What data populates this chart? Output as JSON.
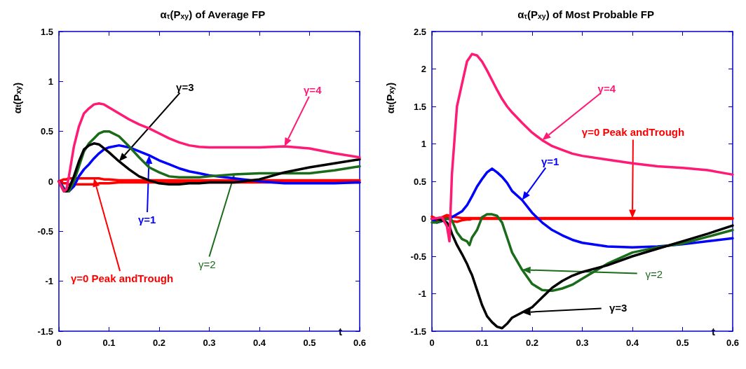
{
  "chart_data": [
    {
      "type": "line",
      "title": "α$_{τ}$(P$_{xy}$) of Average FP",
      "xlabel": "t",
      "ylabel": "α$_{t}$(P$_{xy}$)",
      "x": [
        0,
        0.005,
        0.01,
        0.015,
        0.02,
        0.03,
        0.04,
        0.05,
        0.06,
        0.07,
        0.08,
        0.09,
        0.1,
        0.12,
        0.14,
        0.16,
        0.18,
        0.2,
        0.22,
        0.24,
        0.26,
        0.28,
        0.3,
        0.35,
        0.4,
        0.45,
        0.5,
        0.55,
        0.6
      ],
      "xlim": [
        0,
        0.6
      ],
      "xticks": [
        0,
        0.1,
        0.2,
        0.3,
        0.4,
        0.5,
        0.6
      ],
      "ylim": [
        -1.5,
        1.5
      ],
      "yticks": [
        -1.5,
        -1,
        -0.5,
        0,
        0.5,
        1,
        1.5
      ],
      "series": [
        {
          "name": "γ=0 Peak andTrough",
          "color": "#ff0000",
          "values": [
            0,
            0.01,
            0.02,
            0.02,
            0.03,
            0.03,
            0.03,
            0.03,
            0.03,
            0.03,
            0.03,
            0.02,
            0.02,
            0.01,
            0.01,
            0.01,
            0.01,
            0.01,
            0.01,
            0.01,
            0.01,
            0.01,
            0.01,
            0.01,
            0.01,
            0.01,
            0.01,
            0.01,
            0.01
          ]
        },
        {
          "color": "#ff0000",
          "values": [
            0,
            -0.01,
            -0.02,
            -0.02,
            -0.03,
            -0.03,
            -0.03,
            -0.03,
            -0.03,
            -0.03,
            -0.02,
            -0.02,
            -0.02,
            -0.01,
            -0.01,
            -0.01,
            -0.01,
            -0.01,
            -0.01,
            -0.01,
            -0.01,
            -0.01,
            -0.01,
            -0.01,
            -0.01,
            -0.01,
            -0.01,
            -0.01,
            -0.01
          ]
        },
        {
          "name": "γ=1",
          "color": "#0000ff",
          "values": [
            0,
            -0.03,
            -0.07,
            -0.1,
            -0.1,
            -0.05,
            0.05,
            0.12,
            0.17,
            0.23,
            0.28,
            0.32,
            0.34,
            0.36,
            0.34,
            0.3,
            0.26,
            0.21,
            0.17,
            0.13,
            0.1,
            0.08,
            0.06,
            0.03,
            0,
            -0.02,
            -0.02,
            -0.02,
            -0.01
          ]
        },
        {
          "name": "γ=2",
          "color": "#1a6b1a",
          "values": [
            0,
            -0.04,
            -0.08,
            -0.1,
            -0.1,
            0,
            0.15,
            0.3,
            0.38,
            0.43,
            0.48,
            0.5,
            0.5,
            0.45,
            0.35,
            0.24,
            0.14,
            0.09,
            0.05,
            0.04,
            0.04,
            0.04,
            0.05,
            0.07,
            0.08,
            0.08,
            0.08,
            0.11,
            0.15
          ]
        },
        {
          "name": "γ=3",
          "color": "#000000",
          "values": [
            0,
            -0.05,
            -0.1,
            -0.1,
            -0.07,
            0.05,
            0.2,
            0.32,
            0.36,
            0.38,
            0.37,
            0.33,
            0.29,
            0.2,
            0.12,
            0.05,
            0.01,
            -0.02,
            -0.03,
            -0.03,
            -0.02,
            -0.02,
            -0.01,
            -0.01,
            0.02,
            0.09,
            0.14,
            0.18,
            0.22
          ]
        },
        {
          "name": "γ=4",
          "color": "#ff1a75",
          "values": [
            0,
            -0.05,
            -0.1,
            -0.08,
            0.05,
            0.35,
            0.55,
            0.68,
            0.73,
            0.77,
            0.78,
            0.77,
            0.74,
            0.68,
            0.62,
            0.57,
            0.53,
            0.48,
            0.43,
            0.39,
            0.36,
            0.345,
            0.34,
            0.34,
            0.34,
            0.35,
            0.33,
            0.28,
            0.24
          ]
        }
      ]
    },
    {
      "type": "line",
      "title": "α$_{τ}$(P$_{xy}$) of Most Probable FP",
      "xlabel": "t",
      "ylabel": "α$_{t}$(P$_{xy}$)",
      "x": [
        0,
        0.01,
        0.02,
        0.03,
        0.035,
        0.04,
        0.05,
        0.06,
        0.07,
        0.075,
        0.08,
        0.09,
        0.1,
        0.11,
        0.12,
        0.13,
        0.14,
        0.15,
        0.16,
        0.18,
        0.2,
        0.22,
        0.24,
        0.26,
        0.28,
        0.3,
        0.35,
        0.4,
        0.45,
        0.5,
        0.55,
        0.6
      ],
      "xlim": [
        0,
        0.6
      ],
      "xticks": [
        0,
        0.1,
        0.2,
        0.3,
        0.4,
        0.5,
        0.6
      ],
      "ylim": [
        -1.5,
        2.5
      ],
      "yticks": [
        -1.5,
        -1,
        -0.5,
        0,
        0.5,
        1,
        1.5,
        2,
        2.5
      ],
      "series": [
        {
          "name": "γ=0 Peak andTrough",
          "color": "#ff0000",
          "values": [
            0.03,
            0,
            0.02,
            0.05,
            0.04,
            0.03,
            0.02,
            0.01,
            0.01,
            0.01,
            0.01,
            0.01,
            0.01,
            0.01,
            0.01,
            0.01,
            0.01,
            0.01,
            0.01,
            0.01,
            0.01,
            0.01,
            0.01,
            0.01,
            0.01,
            0.01,
            0.01,
            0.01,
            0.01,
            0.01,
            0.01,
            0.01
          ]
        },
        {
          "color": "#ff0000",
          "values": [
            0,
            -0.02,
            0,
            0.02,
            0,
            -0.03,
            -0.04,
            -0.02,
            -0.01,
            -0.01,
            0,
            0,
            0,
            0,
            0,
            0,
            0,
            0,
            0,
            0,
            0,
            0,
            0,
            0,
            0,
            0,
            0,
            0,
            0,
            0,
            0,
            0
          ]
        },
        {
          "name": "γ=1",
          "color": "#0000ff",
          "values": [
            0,
            -0.05,
            -0.03,
            0,
            0,
            0.02,
            0.06,
            0.1,
            0.18,
            0.24,
            0.3,
            0.43,
            0.53,
            0.62,
            0.67,
            0.62,
            0.56,
            0.48,
            0.37,
            0.25,
            0.08,
            -0.05,
            -0.15,
            -0.22,
            -0.28,
            -0.32,
            -0.37,
            -0.38,
            -0.37,
            -0.34,
            -0.3,
            -0.26
          ]
        },
        {
          "name": "γ=2",
          "color": "#1a6b1a",
          "values": [
            -0.05,
            -0.05,
            -0.02,
            0,
            0,
            -0.02,
            -0.18,
            -0.27,
            -0.3,
            -0.35,
            -0.25,
            -0.15,
            0.02,
            0.06,
            0.06,
            0.04,
            -0.05,
            -0.25,
            -0.45,
            -0.68,
            -0.87,
            -0.95,
            -0.96,
            -0.93,
            -0.88,
            -0.8,
            -0.6,
            -0.45,
            -0.38,
            -0.33,
            -0.24,
            -0.15
          ]
        },
        {
          "name": "γ=3",
          "color": "#000000",
          "values": [
            0,
            0,
            -0.02,
            -0.05,
            -0.1,
            -0.2,
            -0.35,
            -0.47,
            -0.6,
            -0.68,
            -0.75,
            -0.95,
            -1.15,
            -1.3,
            -1.38,
            -1.44,
            -1.46,
            -1.4,
            -1.32,
            -1.25,
            -1.18,
            -1.05,
            -0.92,
            -0.83,
            -0.76,
            -0.71,
            -0.62,
            -0.5,
            -0.4,
            -0.3,
            -0.2,
            -0.09
          ]
        },
        {
          "name": "γ=4",
          "color": "#ff1a75",
          "values": [
            0,
            0.01,
            0.02,
            -0.1,
            -0.3,
            0.6,
            1.5,
            1.8,
            2.1,
            2.15,
            2.2,
            2.18,
            2.1,
            1.98,
            1.85,
            1.72,
            1.6,
            1.5,
            1.42,
            1.28,
            1.15,
            1.05,
            0.97,
            0.92,
            0.87,
            0.84,
            0.79,
            0.74,
            0.7,
            0.68,
            0.65,
            0.59
          ]
        }
      ]
    }
  ]
}
